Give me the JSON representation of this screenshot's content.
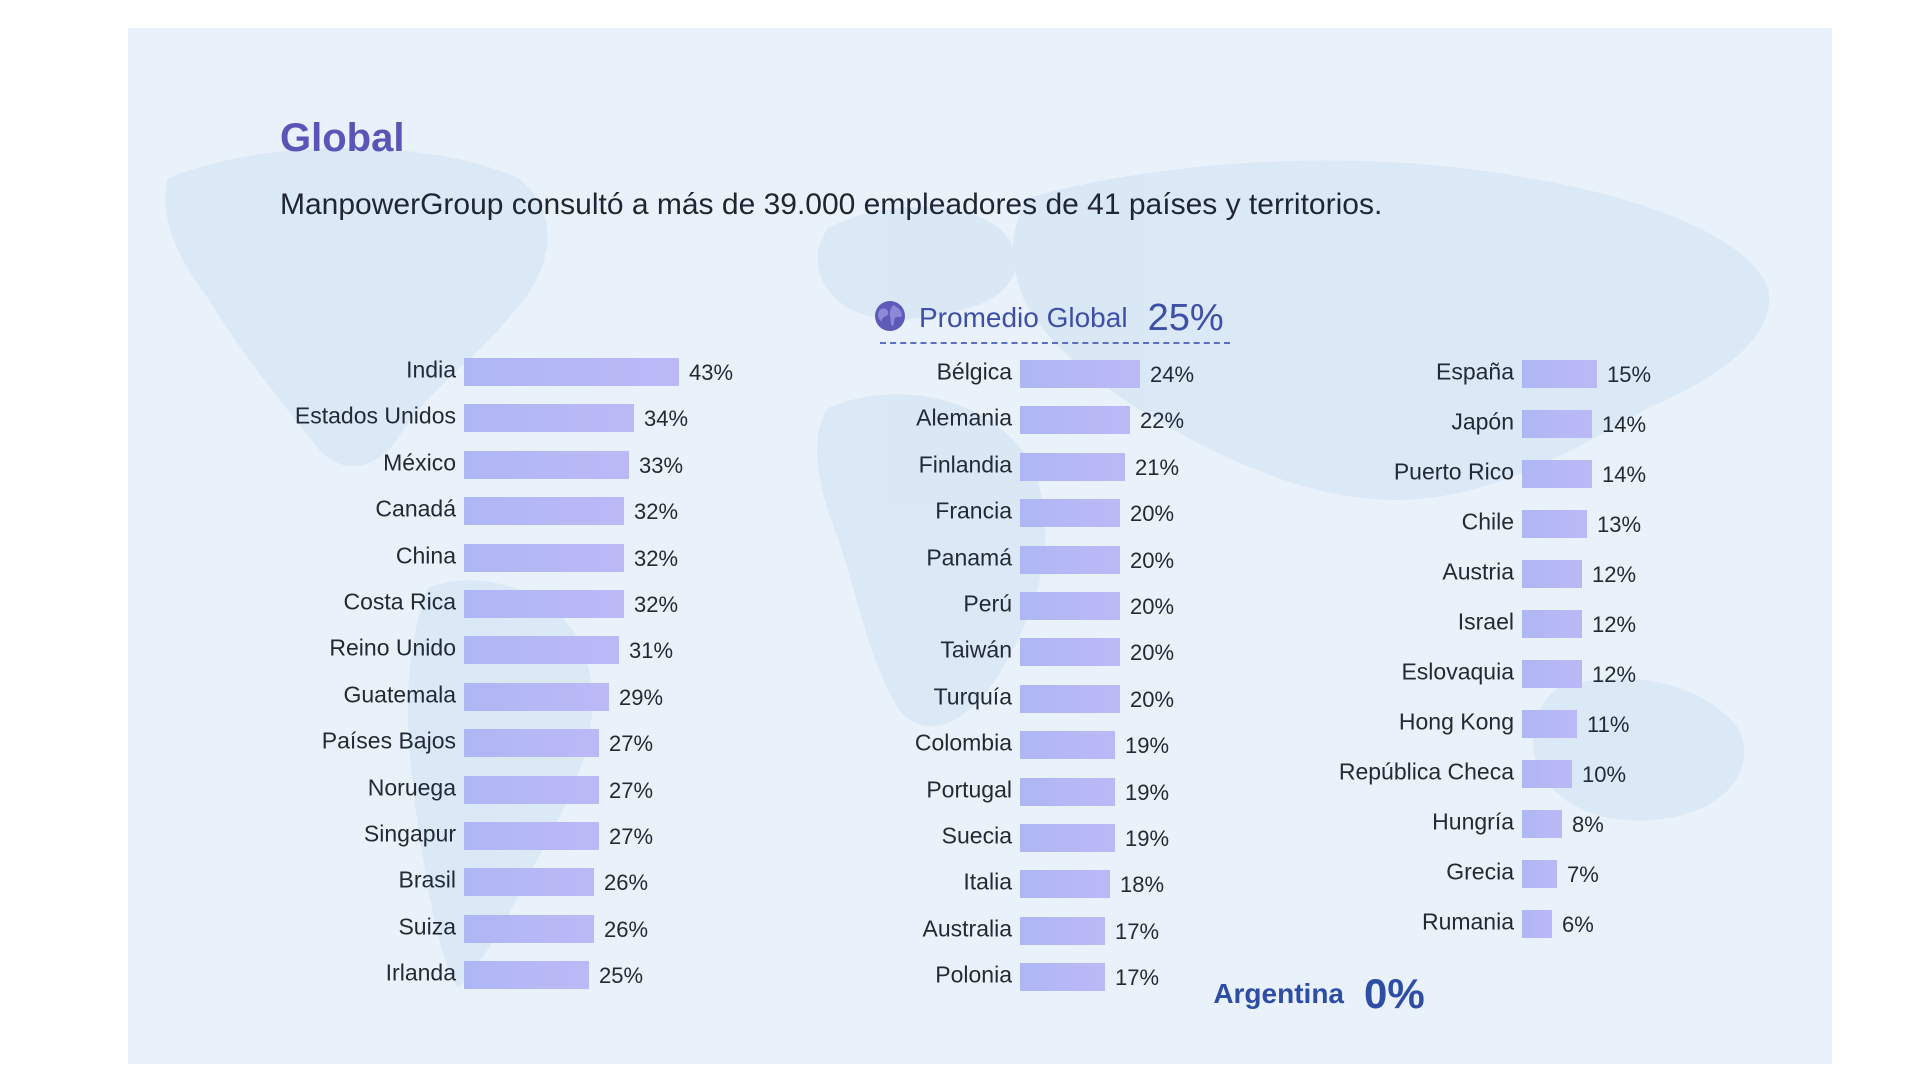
{
  "header": {
    "title": "Global",
    "subtitle": "ManpowerGroup consultó a más de 39.000 empleadores de 41 países y territorios."
  },
  "global_average": {
    "icon": "globe-icon",
    "label": "Promedio Global",
    "value": "25%"
  },
  "highlight": {
    "country": "Argentina",
    "value": "0%"
  },
  "colors": {
    "accent": "#5b55b8",
    "bar": "#b3b6f5",
    "highlight": "#2e4ea6",
    "panel": "#e9f1fb"
  },
  "chart_data": {
    "type": "bar",
    "orientation": "horizontal",
    "unit": "%",
    "columns": [
      {
        "categories": [
          "India",
          "Estados Unidos",
          "México",
          "Canadá",
          "China",
          "Costa Rica",
          "Reino Unido",
          "Guatemala",
          "Países Bajos",
          "Noruega",
          "Singapur",
          "Brasil",
          "Suiza",
          "Irlanda"
        ],
        "values": [
          43,
          34,
          33,
          32,
          32,
          32,
          31,
          29,
          27,
          27,
          27,
          26,
          26,
          25
        ]
      },
      {
        "categories": [
          "Bélgica",
          "Alemania",
          "Finlandia",
          "Francia",
          "Panamá",
          "Perú",
          "Taiwán",
          "Turquía",
          "Colombia",
          "Portugal",
          "Suecia",
          "Italia",
          "Australia",
          "Polonia"
        ],
        "values": [
          24,
          22,
          21,
          20,
          20,
          20,
          20,
          20,
          19,
          19,
          19,
          18,
          17,
          17
        ]
      },
      {
        "categories": [
          "España",
          "Japón",
          "Puerto Rico",
          "Chile",
          "Austria",
          "Israel",
          "Eslovaquia",
          "Hong Kong",
          "República Checa",
          "Hungría",
          "Grecia",
          "Rumania"
        ],
        "values": [
          15,
          14,
          14,
          13,
          12,
          12,
          12,
          11,
          10,
          8,
          7,
          6
        ]
      }
    ]
  }
}
